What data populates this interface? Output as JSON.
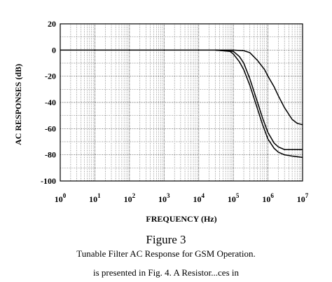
{
  "chart_data": {
    "type": "line",
    "xscale": "log",
    "xlabel": "FREQUENCY (Hz)",
    "ylabel": "AC RESPONSES (dB)",
    "xlim": [
      1,
      10000000
    ],
    "ylim": [
      -100,
      20
    ],
    "x_ticks": [
      {
        "base": "10",
        "exp": "0"
      },
      {
        "base": "10",
        "exp": "1"
      },
      {
        "base": "10",
        "exp": "2"
      },
      {
        "base": "10",
        "exp": "3"
      },
      {
        "base": "10",
        "exp": "4"
      },
      {
        "base": "10",
        "exp": "5"
      },
      {
        "base": "10",
        "exp": "6"
      },
      {
        "base": "10",
        "exp": "7"
      }
    ],
    "y_ticks": [
      "20",
      "0",
      "-20",
      "-40",
      "-60",
      "-80",
      "-100"
    ],
    "y_tick_values": [
      20,
      0,
      -20,
      -40,
      -60,
      -80,
      -100
    ],
    "grid": true,
    "series": [
      {
        "x": [
          1,
          10,
          100,
          1000,
          10000,
          30000,
          100000,
          200000,
          300000,
          500000,
          800000,
          1000000,
          1500000,
          2000000,
          3000000,
          5000000,
          7000000,
          10000000
        ],
        "y": [
          0,
          0,
          0,
          0,
          0,
          0,
          0,
          -0.5,
          -2,
          -8,
          -15,
          -20,
          -28,
          -35,
          -44,
          -53,
          -56,
          -57
        ]
      },
      {
        "x": [
          30000,
          100000,
          150000,
          200000,
          300000,
          500000,
          700000,
          1000000,
          1500000,
          2000000,
          3000000,
          5000000,
          10000000
        ],
        "y": [
          0,
          -1,
          -5,
          -10,
          -22,
          -40,
          -52,
          -63,
          -71,
          -74,
          -76,
          -76,
          -76
        ]
      },
      {
        "x": [
          30000,
          80000,
          100000,
          150000,
          200000,
          300000,
          500000,
          700000,
          1000000,
          1500000,
          2000000,
          3000000,
          5000000,
          10000000
        ],
        "y": [
          0,
          -1,
          -3,
          -9,
          -15,
          -27,
          -45,
          -57,
          -68,
          -75,
          -78,
          -80,
          -81,
          -82
        ]
      }
    ]
  },
  "figure": {
    "title": "Figure 3",
    "caption": "Tunable Filter AC Response for GSM Operation."
  },
  "body_text": "is presented in Fig. 4. A Resistor...ces in"
}
